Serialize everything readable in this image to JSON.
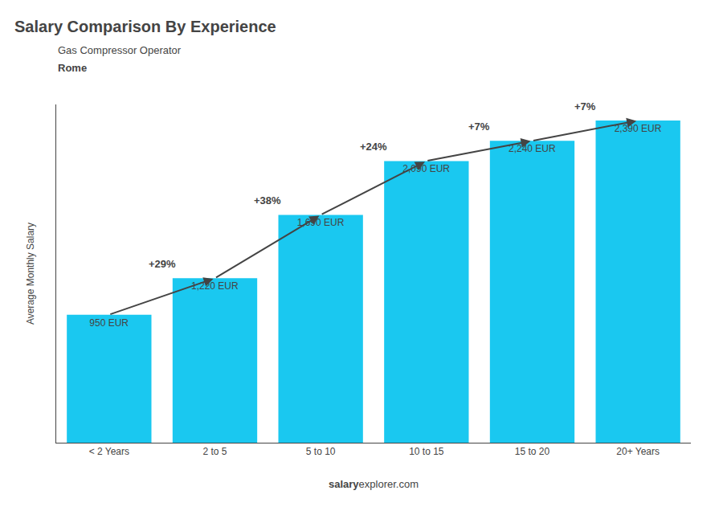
{
  "chart_data": {
    "type": "bar",
    "title": "Salary Comparison By Experience",
    "subtitle": [
      "Gas Compressor Operator",
      "Rome"
    ],
    "ylabel": "Average Monthly Salary",
    "categories": [
      "< 2 Years",
      "2 to 5",
      "5 to 10",
      "10 to 15",
      "15 to 20",
      "20+ Years"
    ],
    "values": [
      950,
      1220,
      1690,
      2090,
      2240,
      2390
    ],
    "value_labels": [
      "950 EUR",
      "1,220 EUR",
      "1,690 EUR",
      "2,090 EUR",
      "2,240 EUR",
      "2,390 EUR"
    ],
    "data_labels": true,
    "color": "#1ac8f0",
    "annotations": [
      "+29%",
      "+38%",
      "+24%",
      "+7%",
      "+7%"
    ],
    "footer": [
      "salary",
      "explorer.com"
    ],
    "ylim": [
      0,
      2509.5
    ],
    "tick_labels": "x",
    "grid": false
  }
}
